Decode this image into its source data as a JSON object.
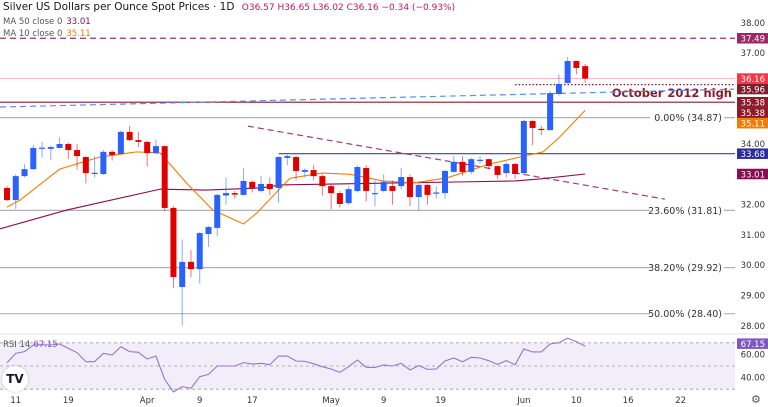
{
  "header": {
    "title": "Silver US Dollars per Ounce Spot Prices · 1D",
    "open": "O36.57",
    "high": "H36.65",
    "low": "L36.02",
    "close": "C36.16",
    "change": "−0.34 (−0.93%)"
  },
  "indicators": {
    "ma50": {
      "label": "MA 50 close 0",
      "value": "33.01",
      "color": "#880e4f"
    },
    "ma10": {
      "label": "MA 10 close 0",
      "value": "35.11",
      "color": "#f57c00"
    },
    "rsi": {
      "label": "RSI 14",
      "value": "67.15",
      "color": "#9575cd"
    }
  },
  "logo": "TV",
  "settings_icon": "gear-icon",
  "chart_data": {
    "type": "candlestick",
    "title": "Silver US Dollars per Ounce Spot Prices · 1D",
    "ylim": [
      27.8,
      38.5
    ],
    "y_ticks": [
      "38.00",
      "37.00",
      "34.00",
      "32.00",
      "31.00",
      "30.00",
      "29.00",
      "28.00"
    ],
    "x_ticks": [
      {
        "label": "11",
        "bar": 1
      },
      {
        "label": "19",
        "bar": 7
      },
      {
        "label": "Apr",
        "bar": 16
      },
      {
        "label": "9",
        "bar": 22
      },
      {
        "label": "17",
        "bar": 28
      },
      {
        "label": "May",
        "bar": 37
      },
      {
        "label": "9",
        "bar": 43
      },
      {
        "label": "19",
        "bar": 49.5
      },
      {
        "label": "Jun",
        "bar": 59
      },
      {
        "label": "10",
        "bar": 65
      },
      {
        "label": "16",
        "bar": 70.9
      },
      {
        "label": "22",
        "bar": 76.9
      }
    ],
    "colors": {
      "up": "#2962ff",
      "down": "#e00000"
    },
    "candles_ohlc": [
      [
        32.55,
        32.62,
        32.12,
        32.15
      ],
      [
        32.15,
        33.0,
        31.85,
        32.94
      ],
      [
        32.94,
        33.33,
        32.9,
        33.17
      ],
      [
        33.17,
        33.97,
        33.15,
        33.87
      ],
      [
        33.87,
        34.07,
        33.55,
        33.88
      ],
      [
        33.84,
        33.95,
        33.47,
        33.9
      ],
      [
        33.87,
        34.23,
        33.85,
        34.0
      ],
      [
        34.0,
        34.05,
        33.5,
        33.8
      ],
      [
        33.8,
        34.0,
        33.15,
        33.6
      ],
      [
        33.57,
        33.6,
        32.7,
        33.04
      ],
      [
        33.04,
        33.6,
        32.9,
        33.05
      ],
      [
        33.01,
        33.8,
        32.98,
        33.74
      ],
      [
        33.74,
        33.8,
        33.45,
        33.64
      ],
      [
        33.67,
        34.45,
        33.65,
        34.4
      ],
      [
        34.4,
        34.6,
        34.1,
        34.13
      ],
      [
        34.13,
        34.4,
        33.9,
        34.07
      ],
      [
        34.07,
        34.1,
        33.25,
        33.7
      ],
      [
        33.7,
        34.15,
        33.68,
        33.93
      ],
      [
        33.93,
        33.95,
        31.78,
        31.89
      ],
      [
        31.89,
        31.95,
        29.25,
        29.61
      ],
      [
        29.28,
        30.85,
        28.0,
        30.11
      ],
      [
        30.11,
        30.5,
        29.6,
        29.87
      ],
      [
        29.87,
        31.1,
        29.4,
        31.06
      ],
      [
        31.03,
        31.3,
        30.6,
        31.26
      ],
      [
        31.23,
        32.35,
        30.95,
        32.32
      ],
      [
        32.3,
        32.9,
        32.0,
        32.38
      ],
      [
        32.38,
        32.45,
        32.2,
        32.33
      ],
      [
        32.32,
        33.2,
        32.3,
        32.78
      ],
      [
        32.75,
        32.8,
        32.4,
        32.55
      ],
      [
        32.45,
        32.95,
        32.4,
        32.68
      ],
      [
        32.68,
        32.9,
        32.3,
        32.51
      ],
      [
        32.55,
        33.6,
        32.05,
        33.57
      ],
      [
        33.54,
        33.65,
        33.3,
        33.6
      ],
      [
        33.57,
        33.62,
        32.8,
        33.11
      ],
      [
        33.08,
        33.2,
        32.9,
        33.14
      ],
      [
        33.14,
        33.3,
        32.8,
        32.94
      ],
      [
        32.94,
        33.0,
        32.3,
        32.61
      ],
      [
        32.61,
        32.7,
        31.85,
        32.38
      ],
      [
        32.38,
        32.45,
        31.9,
        32.02
      ],
      [
        32.05,
        32.6,
        32.0,
        32.51
      ],
      [
        32.45,
        33.3,
        32.4,
        33.24
      ],
      [
        33.21,
        33.3,
        32.1,
        32.45
      ],
      [
        32.35,
        32.8,
        31.95,
        32.38
      ],
      [
        32.45,
        33.0,
        32.4,
        32.75
      ],
      [
        32.61,
        32.8,
        32.0,
        32.45
      ],
      [
        32.61,
        33.2,
        32.5,
        32.91
      ],
      [
        32.91,
        33.0,
        31.95,
        32.25
      ],
      [
        32.25,
        32.7,
        31.8,
        32.65
      ],
      [
        32.65,
        32.7,
        32.0,
        32.32
      ],
      [
        32.38,
        32.6,
        32.2,
        32.4
      ],
      [
        32.38,
        33.15,
        32.2,
        33.11
      ],
      [
        33.08,
        33.6,
        33.05,
        33.41
      ],
      [
        33.41,
        33.6,
        32.95,
        33.08
      ],
      [
        33.08,
        33.55,
        33.0,
        33.5
      ],
      [
        33.47,
        33.6,
        33.35,
        33.48
      ],
      [
        33.5,
        33.52,
        33.15,
        33.27
      ],
      [
        33.27,
        33.3,
        32.85,
        32.98
      ],
      [
        33.04,
        33.4,
        32.9,
        33.34
      ],
      [
        33.34,
        33.38,
        32.85,
        33.01
      ],
      [
        33.04,
        34.8,
        32.98,
        34.76
      ],
      [
        34.76,
        34.8,
        33.97,
        34.53
      ],
      [
        34.5,
        34.6,
        34.3,
        34.46
      ],
      [
        34.46,
        35.75,
        34.44,
        35.68
      ],
      [
        35.65,
        36.3,
        35.6,
        35.98
      ],
      [
        36.01,
        36.87,
        36.0,
        36.74
      ],
      [
        36.74,
        36.75,
        36.3,
        36.51
      ],
      [
        36.57,
        36.65,
        36.02,
        36.16
      ]
    ],
    "ma10_points": [
      [
        0,
        31.92
      ],
      [
        1.5,
        32.15
      ],
      [
        6,
        33.17
      ],
      [
        10.6,
        33.57
      ],
      [
        14.8,
        33.74
      ],
      [
        17.5,
        33.7
      ],
      [
        20.5,
        32.71
      ],
      [
        23.5,
        31.82
      ],
      [
        27,
        31.36
      ],
      [
        28.5,
        31.72
      ],
      [
        32.3,
        32.87
      ],
      [
        36,
        33.04
      ],
      [
        39.2,
        33.0
      ],
      [
        42.9,
        32.78
      ],
      [
        46.3,
        32.71
      ],
      [
        50.2,
        32.88
      ],
      [
        55.1,
        33.34
      ],
      [
        59,
        33.6
      ],
      [
        61.2,
        33.74
      ],
      [
        63.1,
        34.23
      ],
      [
        66,
        35.11
      ]
    ],
    "ma50_points": [
      [
        -0.8,
        31.2
      ],
      [
        6.8,
        31.82
      ],
      [
        17.5,
        32.51
      ],
      [
        22.8,
        32.48
      ],
      [
        29,
        32.55
      ],
      [
        31.2,
        32.65
      ],
      [
        52,
        32.75
      ],
      [
        58,
        32.78
      ],
      [
        61,
        32.85
      ],
      [
        66,
        33.01
      ]
    ],
    "levels": [
      {
        "name": "resistance-37-49",
        "value": 37.49,
        "label": "37.49",
        "color": "#a0306a",
        "style": "dashed"
      },
      {
        "name": "last-price",
        "value": 36.16,
        "label": "36.16",
        "color": "#f23645",
        "style": "solid-faint"
      },
      {
        "name": "level-35-96",
        "value": 35.96,
        "label": "35.96",
        "color": "#7b1e2e",
        "style": "dotted",
        "from_bar": 58
      },
      {
        "name": "october-2012-high",
        "value": 35.38,
        "label": "35.38",
        "color": "#8b1a2b",
        "style": "solid",
        "text": "October 2012 high"
      },
      {
        "name": "fib-0",
        "value": 34.87,
        "label": "",
        "color": "#b2b2b2",
        "style": "solid",
        "text": "0.00% (34.87)"
      },
      {
        "name": "support-33-68",
        "value": 33.68,
        "label": "33.68",
        "color": "#3f3fa0",
        "style": "solid",
        "from_bar": 31
      },
      {
        "name": "fib-23-6",
        "value": 31.81,
        "label": "",
        "color": "#b2b2b2",
        "style": "solid",
        "text": "23.60% (31.81)"
      },
      {
        "name": "fib-38-2",
        "value": 29.92,
        "label": "",
        "color": "#b2b2b2",
        "style": "solid",
        "text": "38.20% (29.92)"
      },
      {
        "name": "fib-50",
        "value": 28.4,
        "label": "",
        "color": "#b2b2b2",
        "style": "solid",
        "text": "50.00% (28.40)"
      }
    ],
    "price_tags": [
      {
        "label": "37.49",
        "value": 37.49,
        "color": "#9c2765"
      },
      {
        "label": "36.16",
        "value": 36.16,
        "color": "#f23645"
      },
      {
        "label": "35.96",
        "value": 35.96,
        "color": "#7b1e2e"
      },
      {
        "label": "35.38",
        "value": 35.38,
        "color": "#8b1a2b"
      },
      {
        "label": "35.38",
        "value": 35.08,
        "color": "#8b1a2b"
      },
      {
        "label": "35.11",
        "value": 34.78,
        "color": "#f57c00"
      },
      {
        "label": "33.68",
        "value": 33.68,
        "color": "#2d2d99"
      },
      {
        "label": "33.01",
        "value": 33.01,
        "color": "#880e4f"
      }
    ],
    "trendlines": [
      {
        "name": "rising-trendline",
        "from": [
          -0.8,
          35.22
        ],
        "to": [
          83,
          35.81
        ],
        "color": "#5b8def",
        "style": "dashed"
      },
      {
        "name": "descending-trendline",
        "from": [
          27.5,
          34.59
        ],
        "to": [
          75.1,
          32.18
        ],
        "color": "#a0406a",
        "style": "dashed"
      }
    ],
    "rsi": {
      "levels": [
        70,
        50,
        30
      ],
      "y_ticks": [
        "60.00",
        "40.00"
      ],
      "values": [
        52.9,
        60.9,
        62.4,
        68.1,
        68.4,
        68.1,
        69.0,
        65.2,
        61.5,
        53.7,
        53.7,
        60.9,
        59.5,
        66.7,
        62.4,
        61.8,
        56.0,
        58.6,
        38.5,
        27.6,
        32.2,
        30.7,
        40.8,
        42.8,
        50.0,
        50.0,
        50.0,
        52.9,
        51.7,
        52.3,
        51.1,
        58.6,
        58.6,
        54.3,
        54.0,
        52.0,
        49.4,
        47.4,
        44.5,
        49.4,
        55.2,
        48.9,
        48.6,
        50.9,
        50.0,
        52.3,
        46.6,
        50.3,
        47.1,
        47.4,
        54.3,
        56.9,
        53.7,
        57.5,
        56.9,
        54.6,
        51.4,
        54.6,
        51.1,
        64.7,
        62.1,
        62.1,
        69.0,
        70.1,
        73.9,
        71.0,
        67.15
      ]
    }
  }
}
